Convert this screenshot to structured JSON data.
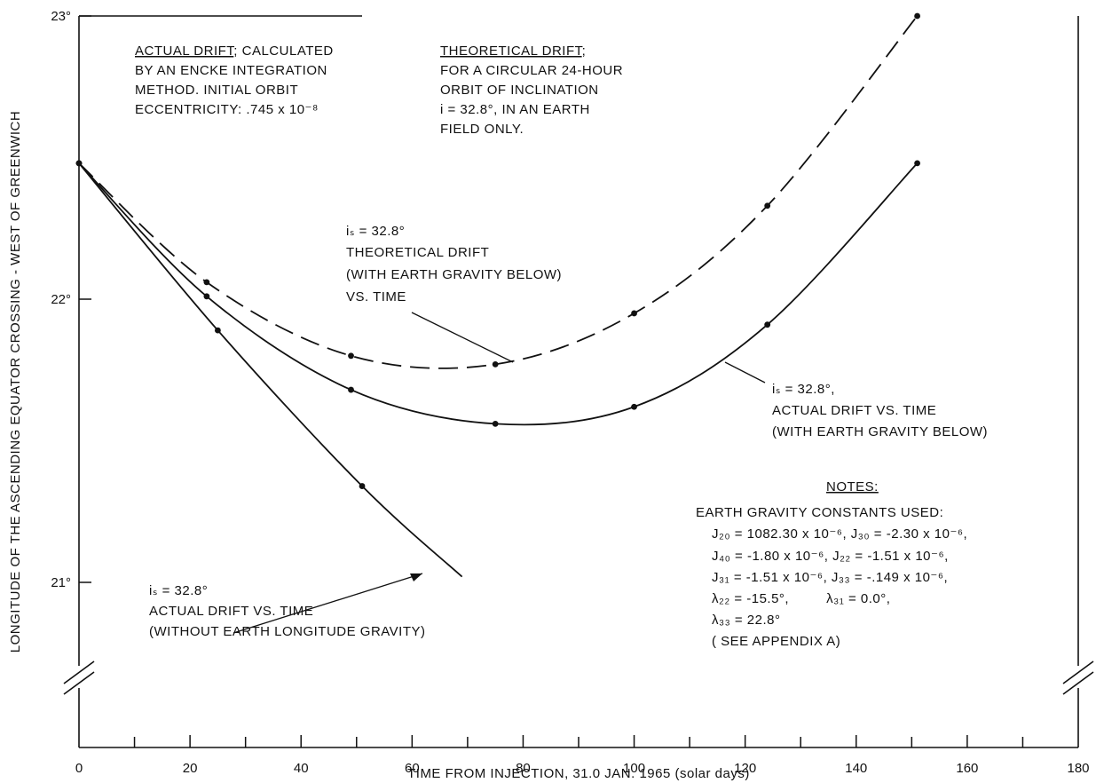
{
  "chart_data": {
    "type": "line",
    "xlabel": "TIME FROM INJECTION, 31.0 JAN. 1965 (solar days)",
    "ylabel": "LONGITUDE OF THE ASCENDING EQUATOR CROSSING - WEST OF GREENWICH",
    "x_ticks": [
      "0",
      "20",
      "40",
      "60",
      "80",
      "100",
      "120",
      "140",
      "160",
      "180"
    ],
    "y_ticks": [
      "21°",
      "22°",
      "23°"
    ],
    "xlim": [
      0,
      180
    ],
    "ylim": [
      20.75,
      23.0
    ],
    "axis_break": true,
    "grid": false,
    "series": [
      {
        "style": "dashed",
        "x": [
          0,
          23,
          49,
          75,
          100,
          124,
          151
        ],
        "y": [
          22.48,
          22.06,
          21.8,
          21.77,
          21.95,
          22.33,
          23.0
        ]
      },
      {
        "style": "solid",
        "x": [
          0,
          23,
          49,
          75,
          100,
          124,
          151
        ],
        "y": [
          22.48,
          22.01,
          21.68,
          21.56,
          21.62,
          21.91,
          22.48
        ]
      },
      {
        "style": "solid",
        "x": [
          0,
          25,
          51,
          69
        ],
        "y": [
          22.48,
          21.89,
          21.34,
          21.02
        ]
      }
    ],
    "annotations": {
      "actual_drift_note": {
        "heading": "ACTUAL DRIFT",
        "heading_suffix": "; CALCULATED",
        "lines": [
          "BY AN ENCKE INTEGRATION",
          "METHOD.  INITIAL ORBIT",
          "ECCENTRICITY:  .745 x 10⁻⁸"
        ]
      },
      "theoretical_drift_note": {
        "heading": "THEORETICAL DRIFT",
        "heading_suffix": ";",
        "lines": [
          "FOR A CIRCULAR 24-HOUR",
          "ORBIT OF INCLINATION",
          "i = 32.8°, IN AN EARTH",
          "FIELD ONLY."
        ]
      },
      "dashed_curve_label": [
        "iₛ = 32.8°",
        "THEORETICAL DRIFT",
        "(WITH EARTH GRAVITY BELOW)",
        "VS. TIME"
      ],
      "middle_curve_label": [
        "iₛ = 32.8°,",
        "ACTUAL DRIFT VS. TIME",
        "(WITH EARTH GRAVITY BELOW)"
      ],
      "lower_curve_label": [
        "iₛ = 32.8°",
        "ACTUAL DRIFT VS. TIME",
        "(WITHOUT EARTH LONGITUDE GRAVITY)"
      ],
      "notes": {
        "heading": "NOTES:",
        "subheading": "EARTH GRAVITY CONSTANTS USED:",
        "lines": [
          "J₂₀ = 1082.30 x 10⁻⁶,  J₃₀ = -2.30 x 10⁻⁶,",
          "J₄₀ = -1.80 x 10⁻⁶,   J₂₂ = -1.51 x 10⁻⁶,",
          "J₃₁ = -1.51 x 10⁻⁶,   J₃₃ = -.149 x 10⁻⁶,",
          "λ₂₂ = -15.5°,         λ₃₁ = 0.0°,",
          "λ₃₃ = 22.8°",
          "( SEE APPENDIX A)"
        ]
      }
    }
  }
}
